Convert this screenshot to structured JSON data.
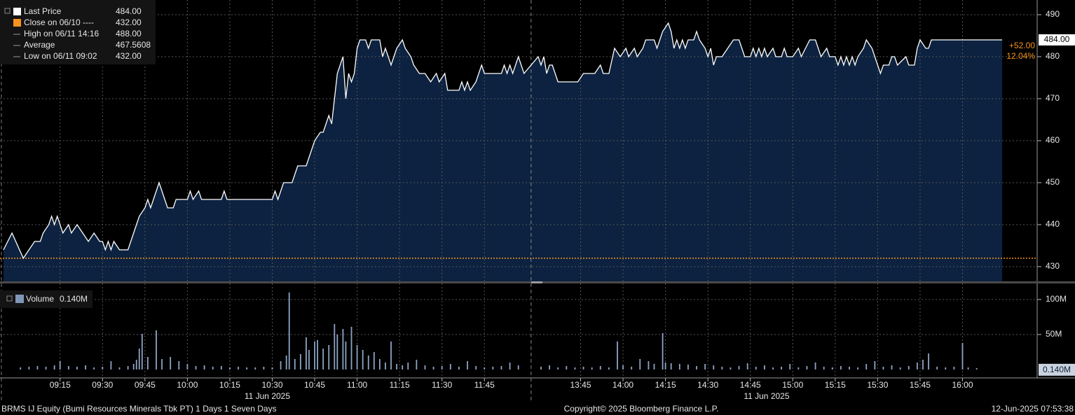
{
  "chart_data": [
    {
      "type": "line",
      "grid": true,
      "ylim": [
        426.5,
        493.5
      ],
      "yticks": [
        430,
        440,
        450,
        460,
        470,
        480,
        490
      ],
      "legend_items": [
        {
          "name": "Last Price",
          "value": 484,
          "value_label": "484.00",
          "color": "#ffffff"
        },
        {
          "name": "Close on 06/10 ----",
          "value": 432,
          "value_label": "432.00",
          "color": "#f7931e",
          "reference_line": true
        },
        {
          "name": "High on 06/11 14:16",
          "value": 488,
          "value_label": "488.00"
        },
        {
          "name": "Average",
          "value": 467.5608
        },
        {
          "name": "Low on 06/11 09:02",
          "value": 432,
          "value_label": "432.00"
        }
      ],
      "change_label": "+52.00",
      "change_pct_label": "12.04%",
      "fill": "#0c2240",
      "series": [
        {
          "color": "#ffffff",
          "x": [
            "08:55",
            "08:58",
            "09:02",
            "09:04",
            "09:06",
            "09:08",
            "09:09",
            "09:11",
            "09:12",
            "09:13",
            "09:14",
            "09:16",
            "09:18",
            "09:19",
            "09:21",
            "09:23",
            "09:25",
            "09:27",
            "09:29",
            "09:30",
            "09:31",
            "09:32",
            "09:33",
            "09:34",
            "09:36",
            "09:39",
            "09:41",
            "09:42",
            "09:43",
            "09:45",
            "09:46",
            "09:47",
            "09:48",
            "09:49",
            "09:50",
            "09:51",
            "09:53",
            "09:55",
            "09:56",
            "10:00",
            "10:01",
            "10:02",
            "10:04",
            "10:05",
            "10:12",
            "10:13",
            "10:14",
            "10:30",
            "10:31",
            "10:32",
            "10:33",
            "10:34",
            "10:37",
            "10:38",
            "10:39",
            "10:42",
            "10:43",
            "10:44",
            "10:45",
            "10:47",
            "10:48",
            "10:49",
            "10:50",
            "10:51",
            "10:52",
            "10:53",
            "10:55",
            "10:56",
            "10:57",
            "10:58",
            "10:59",
            "11:00",
            "11:01",
            "11:03",
            "11:04",
            "11:05",
            "11:08",
            "11:09",
            "11:10",
            "11:12",
            "11:13",
            "11:14",
            "11:16",
            "11:17",
            "11:19",
            "11:20",
            "11:22",
            "11:24",
            "11:26",
            "11:28",
            "11:29",
            "11:31",
            "11:32",
            "11:36",
            "11:37",
            "11:38",
            "11:39",
            "11:40",
            "11:42",
            "11:43",
            "11:44",
            "11:45",
            "11:51",
            "11:52",
            "11:53",
            "11:54",
            "11:55",
            "11:57",
            "11:58",
            "11:59",
            "13:30",
            "13:31",
            "13:32",
            "13:33",
            "13:34",
            "13:35",
            "13:37",
            "13:44",
            "13:46",
            "13:50",
            "13:52",
            "13:53",
            "13:55",
            "13:57",
            "13:59",
            "14:01",
            "14:02",
            "14:04",
            "14:05",
            "14:07",
            "14:08",
            "14:11",
            "14:12",
            "14:14",
            "14:16",
            "14:17",
            "14:18",
            "14:19",
            "14:20",
            "14:21",
            "14:22",
            "14:23",
            "14:25",
            "14:26",
            "14:27",
            "14:29",
            "14:30",
            "14:31",
            "14:32",
            "14:33",
            "14:35",
            "14:37",
            "14:39",
            "14:41",
            "14:42",
            "14:43",
            "14:45",
            "14:46",
            "14:47",
            "14:48",
            "14:49",
            "14:50",
            "14:51",
            "14:53",
            "14:54",
            "14:56",
            "14:57",
            "14:58",
            "15:00",
            "15:02",
            "15:03",
            "15:06",
            "15:08",
            "15:09",
            "15:10",
            "15:12",
            "15:13",
            "15:15",
            "15:16",
            "15:17",
            "15:18",
            "15:19",
            "15:20",
            "15:21",
            "15:22",
            "15:23",
            "15:25",
            "15:26",
            "15:28",
            "15:29",
            "15:31",
            "15:32",
            "15:34",
            "15:35",
            "15:36",
            "15:37",
            "15:40",
            "15:41",
            "15:43",
            "15:44",
            "15:45",
            "15:47",
            "15:48",
            "15:49",
            "16:14"
          ],
          "values": [
            434,
            438,
            432,
            434,
            436,
            436,
            438,
            440,
            442,
            440,
            442,
            438,
            440,
            438,
            440,
            438,
            436,
            438,
            436,
            436,
            434,
            436,
            434,
            436,
            434,
            434,
            438,
            440,
            442,
            444,
            446,
            444,
            446,
            448,
            450,
            448,
            444,
            444,
            446,
            446,
            448,
            446,
            448,
            446,
            446,
            448,
            446,
            446,
            448,
            446,
            448,
            450,
            450,
            452,
            454,
            454,
            456,
            458,
            460,
            462,
            462,
            464,
            466,
            464,
            470,
            476,
            480,
            470,
            476,
            474,
            476,
            482,
            484,
            484,
            482,
            484,
            484,
            480,
            482,
            478,
            480,
            482,
            484,
            482,
            480,
            478,
            476,
            476,
            474,
            476,
            474,
            476,
            472,
            472,
            474,
            472,
            474,
            472,
            474,
            476,
            478,
            476,
            476,
            478,
            476,
            478,
            476,
            480,
            478,
            476,
            480,
            478,
            480,
            476,
            478,
            478,
            474,
            474,
            476,
            476,
            478,
            476,
            476,
            482,
            480,
            482,
            480,
            482,
            480,
            482,
            484,
            484,
            482,
            486,
            488,
            486,
            482,
            484,
            482,
            484,
            482,
            484,
            484,
            486,
            484,
            482,
            480,
            482,
            478,
            480,
            480,
            482,
            484,
            484,
            482,
            480,
            480,
            482,
            480,
            482,
            480,
            482,
            480,
            482,
            480,
            480,
            482,
            480,
            480,
            482,
            480,
            484,
            484,
            482,
            480,
            482,
            480,
            480,
            478,
            480,
            478,
            480,
            478,
            480,
            478,
            480,
            482,
            484,
            482,
            480,
            476,
            478,
            478,
            480,
            480,
            478,
            480,
            478,
            478,
            482,
            484,
            482,
            482,
            484,
            484
          ]
        }
      ]
    },
    {
      "type": "bar",
      "grid": true,
      "ylim": [
        -12,
        123
      ],
      "yticks": [
        {
          "value": 50,
          "label": "50M"
        },
        {
          "value": 100,
          "label": "100M"
        }
      ],
      "xticks": [
        "09:15",
        "09:30",
        "09:45",
        "10:00",
        "10:15",
        "10:30",
        "10:45",
        "11:00",
        "11:15",
        "11:30",
        "11:45",
        "13:45",
        "14:00",
        "14:15",
        "14:30",
        "14:45",
        "15:00",
        "15:15",
        "15:30",
        "15:45",
        "16:00"
      ],
      "x_label": "11 Jun 2025",
      "legend_items": [
        {
          "name": "Volume",
          "value": 0.14,
          "value_label": "0.140M",
          "color": "#8096b8"
        }
      ],
      "series": [
        {
          "color": "#8ea3c4",
          "x": [
            "09:01",
            "09:04",
            "09:07",
            "09:10",
            "09:13",
            "09:15",
            "09:18",
            "09:21",
            "09:24",
            "09:27",
            "09:30",
            "09:33",
            "09:36",
            "09:39",
            "09:41",
            "09:42",
            "09:43",
            "09:44",
            "09:46",
            "09:49",
            "09:51",
            "09:54",
            "09:57",
            "10:00",
            "10:03",
            "10:06",
            "10:09",
            "10:12",
            "10:15",
            "10:18",
            "10:21",
            "10:24",
            "10:27",
            "10:30",
            "10:33",
            "10:35",
            "10:36",
            "10:38",
            "10:40",
            "10:42",
            "10:43",
            "10:45",
            "10:46",
            "10:48",
            "10:50",
            "10:52",
            "10:53",
            "10:55",
            "10:56",
            "10:58",
            "11:00",
            "11:02",
            "11:04",
            "11:06",
            "11:08",
            "11:10",
            "11:12",
            "11:14",
            "11:16",
            "11:18",
            "11:21",
            "11:24",
            "11:27",
            "11:30",
            "11:33",
            "11:36",
            "11:39",
            "11:42",
            "11:45",
            "11:48",
            "11:51",
            "11:54",
            "11:57",
            "13:31",
            "13:34",
            "13:37",
            "13:40",
            "13:43",
            "13:46",
            "13:49",
            "13:52",
            "13:55",
            "13:58",
            "14:00",
            "14:03",
            "14:06",
            "14:09",
            "14:11",
            "14:14",
            "14:15",
            "14:17",
            "14:20",
            "14:23",
            "14:26",
            "14:29",
            "14:32",
            "14:35",
            "14:38",
            "14:41",
            "14:44",
            "14:47",
            "14:50",
            "14:53",
            "14:56",
            "14:59",
            "15:02",
            "15:05",
            "15:08",
            "15:11",
            "15:14",
            "15:17",
            "15:20",
            "15:23",
            "15:26",
            "15:29",
            "15:32",
            "15:35",
            "15:38",
            "15:41",
            "15:44",
            "15:46",
            "15:48",
            "15:51",
            "15:54",
            "15:57",
            "16:00",
            "16:02",
            "16:05"
          ],
          "values": [
            3,
            4,
            5,
            4,
            6,
            12,
            5,
            4,
            6,
            3,
            4,
            12,
            3,
            5,
            8,
            14,
            30,
            51,
            18,
            56,
            15,
            18,
            12,
            8,
            5,
            6,
            4,
            5,
            3,
            4,
            3,
            3,
            4,
            3,
            12,
            20,
            110,
            15,
            22,
            46,
            28,
            40,
            42,
            30,
            35,
            65,
            50,
            58,
            40,
            61,
            35,
            28,
            20,
            25,
            15,
            10,
            40,
            8,
            6,
            10,
            14,
            6,
            4,
            5,
            8,
            4,
            12,
            5,
            3,
            4,
            5,
            10,
            6,
            4,
            6,
            3,
            5,
            3,
            4,
            3,
            5,
            3,
            40,
            6,
            4,
            15,
            12,
            8,
            52,
            10,
            9,
            8,
            7,
            5,
            8,
            6,
            4,
            3,
            5,
            9,
            4,
            6,
            3,
            4,
            8,
            3,
            5,
            10,
            4,
            3,
            5,
            4,
            3,
            8,
            12,
            4,
            6,
            3,
            5,
            10,
            14,
            23,
            4,
            3,
            4,
            38,
            3,
            2
          ]
        }
      ]
    }
  ],
  "footer": {
    "security": "BRMS IJ Equity (Bumi Resources Minerals Tbk PT) 1 Days 1 Seven Days",
    "copyright": "Copyright© 2025 Bloomberg Finance L.P.",
    "timestamp": "12-Jun-2025 07:53:38"
  }
}
